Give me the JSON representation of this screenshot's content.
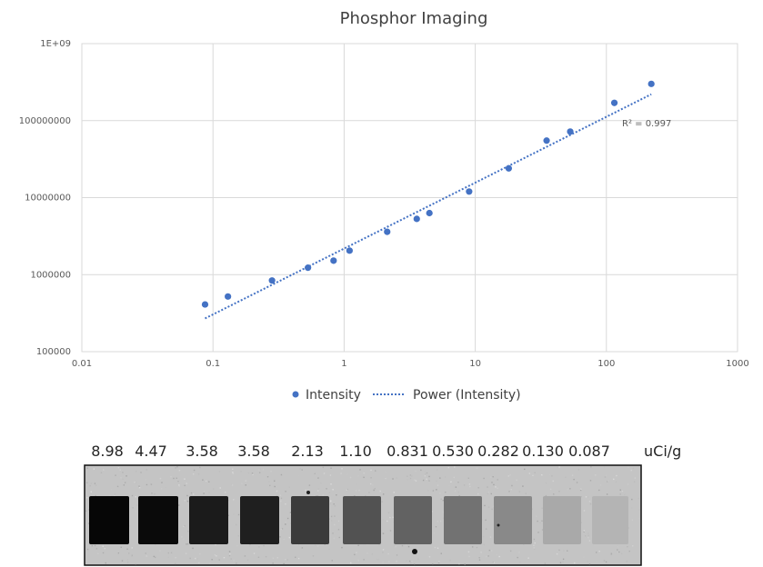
{
  "chart_data": {
    "type": "scatter",
    "title": "Phosphor Imaging",
    "x_scale": "log",
    "y_scale": "log",
    "xlim": [
      0.01,
      1000
    ],
    "ylim": [
      100000,
      1000000000
    ],
    "x_ticks": [
      "0.01",
      "0.1",
      "1",
      "10",
      "100",
      "1000"
    ],
    "y_ticks": [
      "100000",
      "1000000",
      "10000000",
      "100000000",
      "1E+09"
    ],
    "grid": true,
    "legend_position": "bottom",
    "series": [
      {
        "name": "Intensity",
        "color": "#4472C4",
        "x": [
          0.087,
          0.13,
          0.282,
          0.53,
          0.831,
          1.1,
          2.13,
          3.58,
          4.47,
          8.98,
          18,
          35,
          53,
          115,
          220
        ],
        "y": [
          410000,
          520000,
          840000,
          1230000,
          1520000,
          2050000,
          3600000,
          5300000,
          6300000,
          12000000,
          24000000,
          55000000,
          72000000,
          170000000,
          300000000
        ]
      }
    ],
    "trendline": {
      "name": "Power (Intensity)",
      "type": "power",
      "color": "#4472C4",
      "x_range": [
        0.087,
        220
      ],
      "y_range": [
        270000,
        220000000
      ],
      "r2_label": "R² = 0.997"
    }
  },
  "blot": {
    "labels": [
      "8.98",
      "4.47",
      "3.58",
      "3.58",
      "2.13",
      "1.10",
      "0.831",
      "0.530",
      "0.282",
      "0.130",
      "0.087"
    ],
    "unit": "uCi/g",
    "spot_intensity": [
      0.97,
      0.95,
      0.86,
      0.84,
      0.7,
      0.58,
      0.5,
      0.42,
      0.3,
      0.14,
      0.08
    ]
  }
}
